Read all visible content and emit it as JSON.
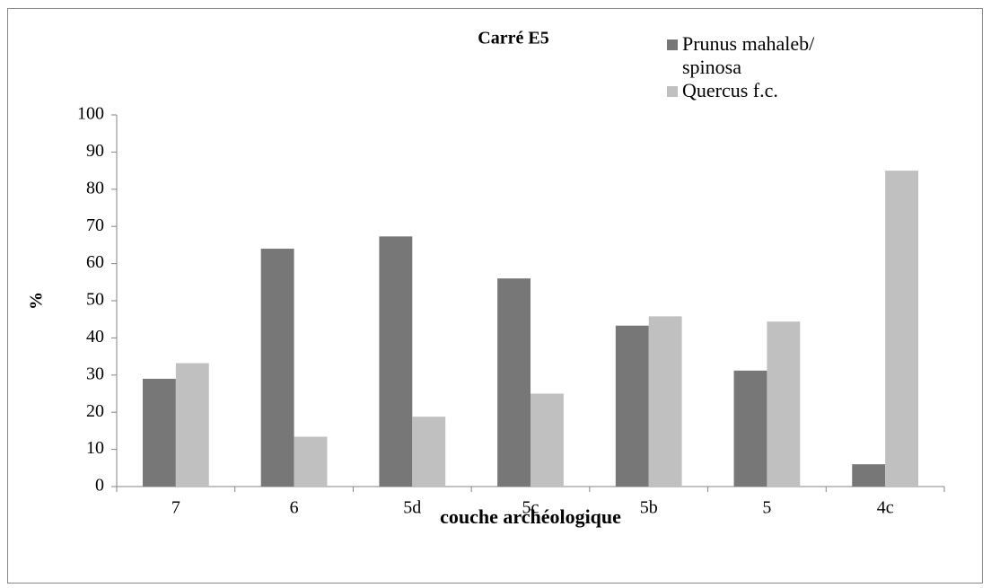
{
  "chart_data": {
    "type": "bar",
    "title": "Carré E5",
    "x_label": "couche archéologique",
    "y_label": "%",
    "categories": [
      "7",
      "6",
      "5d",
      "5c",
      "5b",
      "5",
      "4c"
    ],
    "series": [
      {
        "name": "Prunus mahaleb/ spinosa",
        "color": "#777777",
        "values": [
          29,
          64,
          67.3,
          56,
          43.3,
          31.2,
          6
        ]
      },
      {
        "name": "Quercus f.c.",
        "color": "#c0c0c0",
        "values": [
          33.2,
          13.4,
          18.8,
          25,
          45.8,
          44.4,
          85
        ]
      }
    ],
    "ylim": [
      0,
      100
    ],
    "yticks": [
      0,
      10,
      20,
      30,
      40,
      50,
      60,
      70,
      80,
      90,
      100
    ],
    "grid": false,
    "legend": "top-right"
  }
}
